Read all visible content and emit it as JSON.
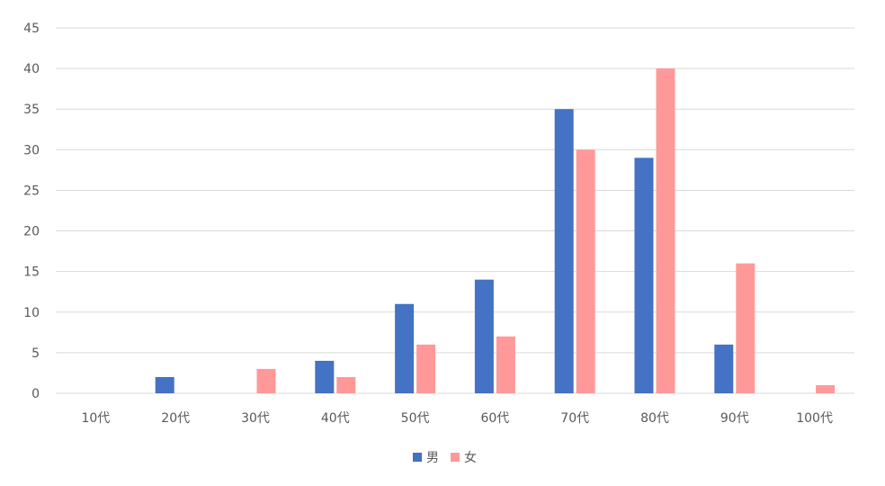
{
  "chart_data": {
    "type": "bar",
    "title": "",
    "xlabel": "",
    "ylabel": "",
    "categories": [
      "10代",
      "20代",
      "30代",
      "40代",
      "50代",
      "60代",
      "70代",
      "80代",
      "90代",
      "100代"
    ],
    "series": [
      {
        "name": "男",
        "color": "#4472c4",
        "values": [
          0,
          2,
          0,
          4,
          11,
          14,
          35,
          29,
          6,
          0
        ]
      },
      {
        "name": "女",
        "color": "#ff9999",
        "values": [
          0,
          0,
          3,
          2,
          6,
          7,
          30,
          40,
          16,
          1
        ]
      }
    ],
    "ylim": [
      0,
      45
    ],
    "yticks": [
      0,
      5,
      10,
      15,
      20,
      25,
      30,
      35,
      40,
      45
    ],
    "grid": true,
    "legend_position": "bottom"
  }
}
